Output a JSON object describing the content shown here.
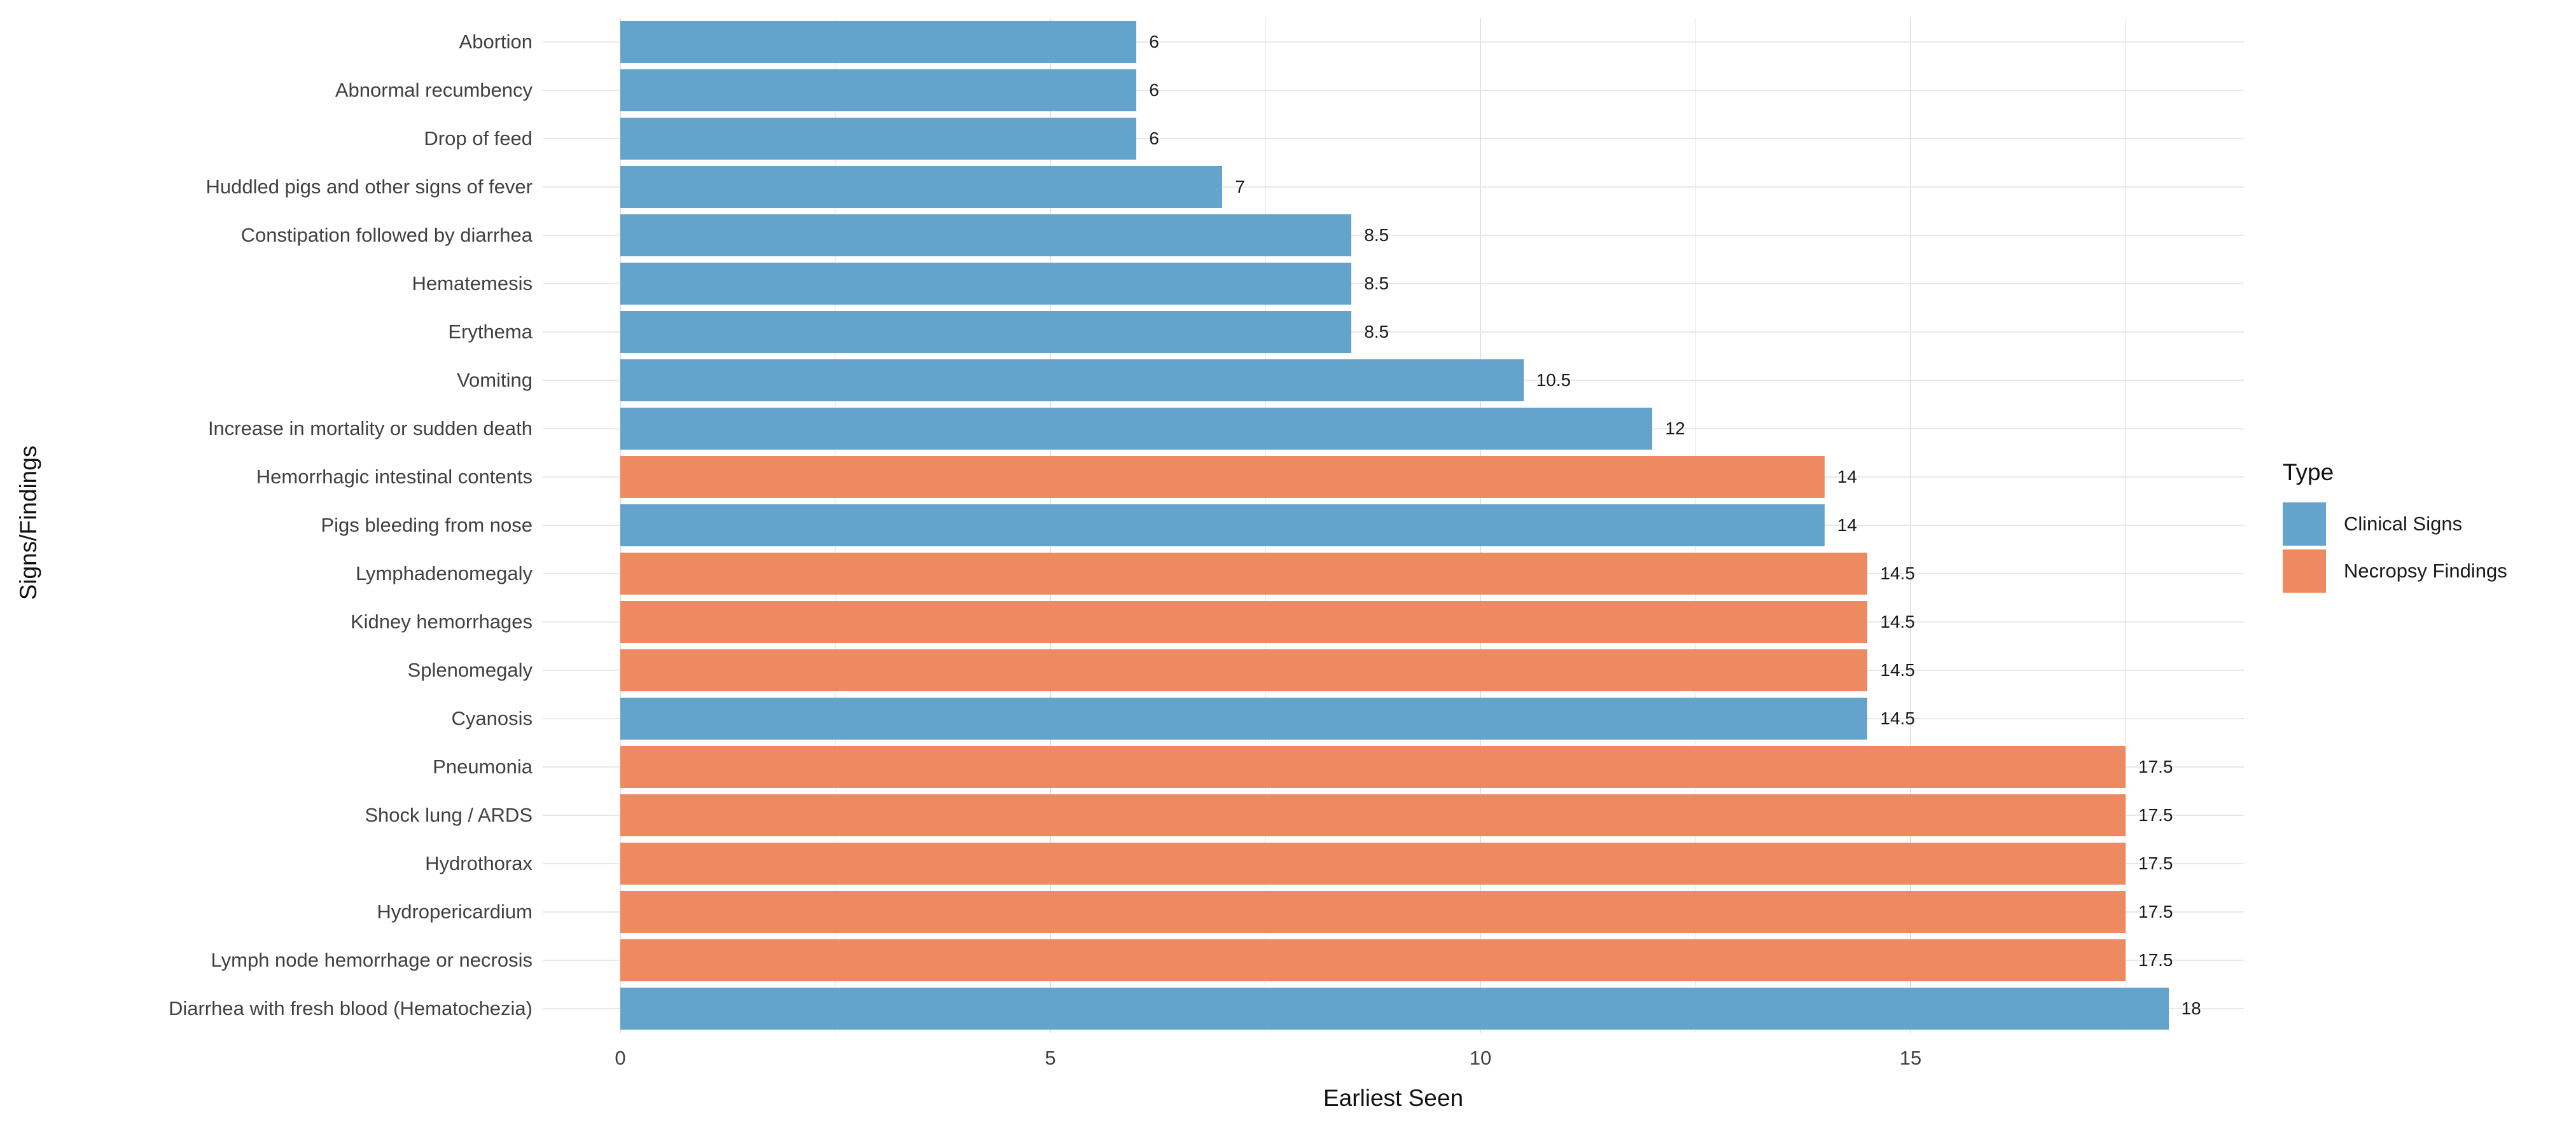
{
  "chart_data": {
    "type": "bar",
    "orientation": "horizontal",
    "title": "",
    "xlabel": "Earliest Seen",
    "ylabel": "Signs/Findings",
    "xlim": [
      -0.9,
      18.9
    ],
    "x_major_ticks": [
      0,
      5,
      10,
      15
    ],
    "x_major_tick_labels": [
      "0",
      "5",
      "10",
      "15"
    ],
    "x_minor_gridlines": [
      2.5,
      7.5,
      12.5,
      17.5
    ],
    "grid": "on",
    "legend": {
      "title": "Type",
      "position": "right",
      "entries": [
        {
          "label": "Clinical Signs",
          "color": "#64a4cc"
        },
        {
          "label": "Necropsy Findings",
          "color": "#ee8a62"
        }
      ]
    },
    "bars": [
      {
        "label": "Abortion",
        "value": 6,
        "value_label": "6",
        "type": "Clinical Signs"
      },
      {
        "label": "Abnormal recumbency",
        "value": 6,
        "value_label": "6",
        "type": "Clinical Signs"
      },
      {
        "label": "Drop of feed",
        "value": 6,
        "value_label": "6",
        "type": "Clinical Signs"
      },
      {
        "label": "Huddled pigs and other signs of fever",
        "value": 7,
        "value_label": "7",
        "type": "Clinical Signs"
      },
      {
        "label": "Constipation followed by diarrhea",
        "value": 8.5,
        "value_label": "8.5",
        "type": "Clinical Signs"
      },
      {
        "label": "Hematemesis",
        "value": 8.5,
        "value_label": "8.5",
        "type": "Clinical Signs"
      },
      {
        "label": "Erythema",
        "value": 8.5,
        "value_label": "8.5",
        "type": "Clinical Signs"
      },
      {
        "label": "Vomiting",
        "value": 10.5,
        "value_label": "10.5",
        "type": "Clinical Signs"
      },
      {
        "label": "Increase in mortality or sudden death",
        "value": 12,
        "value_label": "12",
        "type": "Clinical Signs"
      },
      {
        "label": "Hemorrhagic intestinal contents",
        "value": 14,
        "value_label": "14",
        "type": "Necropsy Findings"
      },
      {
        "label": "Pigs bleeding from nose",
        "value": 14,
        "value_label": "14",
        "type": "Clinical Signs"
      },
      {
        "label": "Lymphadenomegaly",
        "value": 14.5,
        "value_label": "14.5",
        "type": "Necropsy Findings"
      },
      {
        "label": "Kidney hemorrhages",
        "value": 14.5,
        "value_label": "14.5",
        "type": "Necropsy Findings"
      },
      {
        "label": "Splenomegaly",
        "value": 14.5,
        "value_label": "14.5",
        "type": "Necropsy Findings"
      },
      {
        "label": "Cyanosis",
        "value": 14.5,
        "value_label": "14.5",
        "type": "Clinical Signs"
      },
      {
        "label": "Pneumonia",
        "value": 17.5,
        "value_label": "17.5",
        "type": "Necropsy Findings"
      },
      {
        "label": "Shock lung / ARDS",
        "value": 17.5,
        "value_label": "17.5",
        "type": "Necropsy Findings"
      },
      {
        "label": "Hydrothorax",
        "value": 17.5,
        "value_label": "17.5",
        "type": "Necropsy Findings"
      },
      {
        "label": "Hydropericardium",
        "value": 17.5,
        "value_label": "17.5",
        "type": "Necropsy Findings"
      },
      {
        "label": "Lymph node hemorrhage or necrosis",
        "value": 17.5,
        "value_label": "17.5",
        "type": "Necropsy Findings"
      },
      {
        "label": "Diarrhea with fresh blood (Hematochezia)",
        "value": 18,
        "value_label": "18",
        "type": "Clinical Signs"
      }
    ],
    "style": {
      "major_grid_color": "#e2e2e2",
      "minor_grid_color": "#f0f0f0",
      "row_grid_color": "#e8e8e8",
      "background": "#ffffff"
    }
  }
}
